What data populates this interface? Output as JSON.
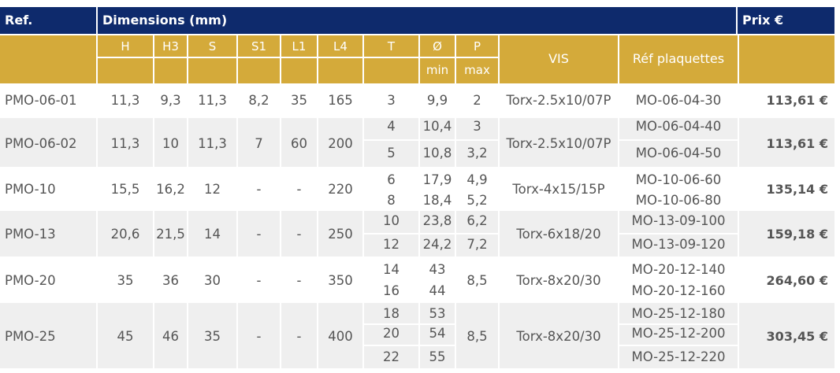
{
  "header": {
    "ref": "Ref.",
    "dimensions": "Dimensions (mm)",
    "price": "Prix €"
  },
  "columns": {
    "H": "H",
    "H3": "H3",
    "S": "S",
    "S1": "S1",
    "L1": "L1",
    "L4": "L4",
    "T": "T",
    "diam": "Ø",
    "diam_sub": "min",
    "P": "P",
    "P_sub": "max",
    "vis": "VIS",
    "plaquettes": "Réf plaquettes"
  },
  "rows": [
    {
      "ref": "PMO-06-01",
      "H": "11,3",
      "H3": "9,3",
      "S": "11,3",
      "S1": "8,2",
      "L1": "35",
      "L4": "165",
      "T": [
        "3"
      ],
      "diam": [
        "9,9"
      ],
      "P": [
        "2"
      ],
      "vis": "Torx-2.5x10/07P",
      "plaquettes": [
        "MO-06-04-30"
      ],
      "price": "113,61  €"
    },
    {
      "ref": "PMO-06-02",
      "H": "11,3",
      "H3": "10",
      "S": "11,3",
      "S1": "7",
      "L1": "60",
      "L4": "200",
      "T": [
        "4",
        "5"
      ],
      "diam": [
        "10,4",
        "10,8"
      ],
      "P": [
        "3",
        "3,2"
      ],
      "vis": "Torx-2.5x10/07P",
      "plaquettes": [
        "MO-06-04-40",
        "MO-06-04-50"
      ],
      "price": "113,61  €"
    },
    {
      "ref": "PMO-10",
      "H": "15,5",
      "H3": "16,2",
      "S": "12",
      "S1": "-",
      "L1": "-",
      "L4": "220",
      "T": [
        "6",
        "8"
      ],
      "diam": [
        "17,9",
        "18,4"
      ],
      "P": [
        "4,9",
        "5,2"
      ],
      "vis": "Torx-4x15/15P",
      "plaquettes": [
        "MO-10-06-60",
        "MO-10-06-80"
      ],
      "price": "135,14  €"
    },
    {
      "ref": "PMO-13",
      "H": "20,6",
      "H3": "21,5",
      "S": "14",
      "S1": "-",
      "L1": "-",
      "L4": "250",
      "T": [
        "10",
        "12"
      ],
      "diam": [
        "23,8",
        "24,2"
      ],
      "P": [
        "6,2",
        "7,2"
      ],
      "vis": "Torx-6x18/20",
      "plaquettes": [
        "MO-13-09-100",
        "MO-13-09-120"
      ],
      "price": "159,18  €"
    },
    {
      "ref": "PMO-20",
      "H": "35",
      "H3": "36",
      "S": "30",
      "S1": "-",
      "L1": "-",
      "L4": "350",
      "T": [
        "14",
        "16"
      ],
      "diam": [
        "43",
        "44"
      ],
      "P": [
        "8,5"
      ],
      "vis": "Torx-8x20/30",
      "plaquettes": [
        "MO-20-12-140",
        "MO-20-12-160"
      ],
      "price": "264,60  €"
    },
    {
      "ref": "PMO-25",
      "H": "45",
      "H3": "46",
      "S": "35",
      "S1": "-",
      "L1": "-",
      "L4": "400",
      "T": [
        "18",
        "20",
        "22"
      ],
      "diam": [
        "53",
        "54",
        "55"
      ],
      "P": [
        "8,5"
      ],
      "vis": "Torx-8x20/30",
      "plaquettes": [
        "MO-25-12-180",
        "MO-25-12-200",
        "MO-25-12-220"
      ],
      "price": "303,45  €"
    }
  ]
}
